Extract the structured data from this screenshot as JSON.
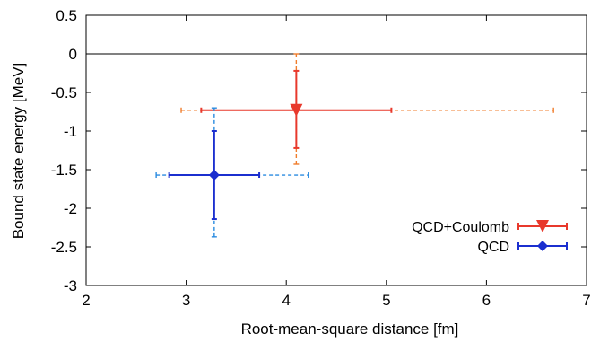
{
  "chart_data": {
    "type": "scatter",
    "title": "",
    "xlabel": "Root-mean-square distance [fm]",
    "ylabel": "Bound state energy [MeV]",
    "xlim": [
      2,
      7
    ],
    "ylim": [
      -3,
      0.5
    ],
    "x_ticks": [
      2,
      3,
      4,
      5,
      6,
      7
    ],
    "x_tick_labels": [
      "2",
      "3",
      "4",
      "5",
      "6",
      "7"
    ],
    "y_ticks": [
      0.5,
      0,
      -0.5,
      -1,
      -1.5,
      -2,
      -2.5,
      -3
    ],
    "y_tick_labels": [
      "0.5",
      "0",
      "-0.5",
      "-1",
      "-1.5",
      "-2",
      "-2.5",
      "-3"
    ],
    "grid": false,
    "reference_line_y": 0,
    "legend_position": "bottom-right",
    "series": [
      {
        "name": "QCD+Coulomb",
        "marker": "triangle-down",
        "color": "#e8392c",
        "sys_color": "#f07d2c",
        "x": 4.1,
        "y": -0.73,
        "x_stat": [
          3.15,
          5.05
        ],
        "x_sys": [
          2.95,
          6.67
        ],
        "y_stat": [
          -1.22,
          -0.22
        ],
        "y_sys": [
          -1.43,
          0.0
        ]
      },
      {
        "name": "QCD",
        "marker": "diamond",
        "color": "#1b2fcf",
        "sys_color": "#2a8be0",
        "x": 3.28,
        "y": -1.57,
        "x_stat": [
          2.83,
          3.73
        ],
        "x_sys": [
          2.7,
          4.22
        ],
        "y_stat": [
          -2.14,
          -1.0
        ],
        "y_sys": [
          -2.37,
          -0.7
        ]
      }
    ]
  }
}
